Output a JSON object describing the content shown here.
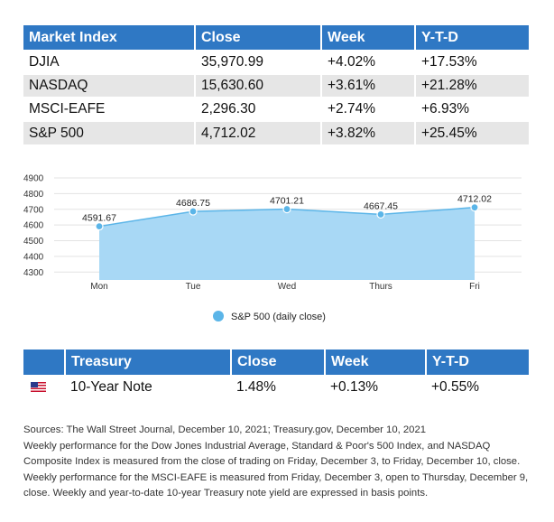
{
  "market_table": {
    "headers": [
      "Market Index",
      "Close",
      "Week",
      "Y-T-D"
    ],
    "rows": [
      [
        "DJIA",
        "35,970.99",
        "+4.02%",
        "+17.53%"
      ],
      [
        "NASDAQ",
        "15,630.60",
        "+3.61%",
        "+21.28%"
      ],
      [
        "MSCI-EAFE",
        "2,296.30",
        "+2.74%",
        "+6.93%"
      ],
      [
        "S&P 500",
        "4,712.02",
        "+3.82%",
        "+25.45%"
      ]
    ]
  },
  "chart_data": {
    "type": "area",
    "categories": [
      "Mon",
      "Tue",
      "Wed",
      "Thurs",
      "Fri"
    ],
    "series": [
      {
        "name": "S&P 500 (daily close)",
        "values": [
          4591.67,
          4686.75,
          4701.21,
          4667.45,
          4712.02
        ],
        "color": "#5bb5e8"
      }
    ],
    "y_ticks": [
      4300,
      4400,
      4500,
      4600,
      4700,
      4800,
      4900
    ],
    "ylim": [
      4250,
      4900
    ],
    "grid": true,
    "legend_position": "bottom-center",
    "area_fill": "#a8d8f5"
  },
  "treasury_table": {
    "headers": [
      "",
      "Treasury",
      "Close",
      "Week",
      "Y-T-D"
    ],
    "flag_icon": "us-flag-icon",
    "rows": [
      [
        "10-Year Note",
        "1.48%",
        "+0.13%",
        "+0.55%"
      ]
    ]
  },
  "notes": {
    "line1": "Sources: The Wall Street Journal, December 10, 2021; Treasury.gov, December 10, 2021",
    "line2": "Weekly performance for the Dow Jones Industrial Average, Standard & Poor's 500 Index, and NASDAQ Composite Index is measured from the close of trading on Friday, December 3, to Friday, December 10, close. Weekly performance for the MSCI-EAFE is measured from Friday, December 3, open to Thursday, December 9, close. Weekly and year-to-date 10-year Treasury note yield are expressed in basis points."
  },
  "colors": {
    "header_blue": "#2f78c4",
    "row_gray": "#e6e6e6"
  }
}
